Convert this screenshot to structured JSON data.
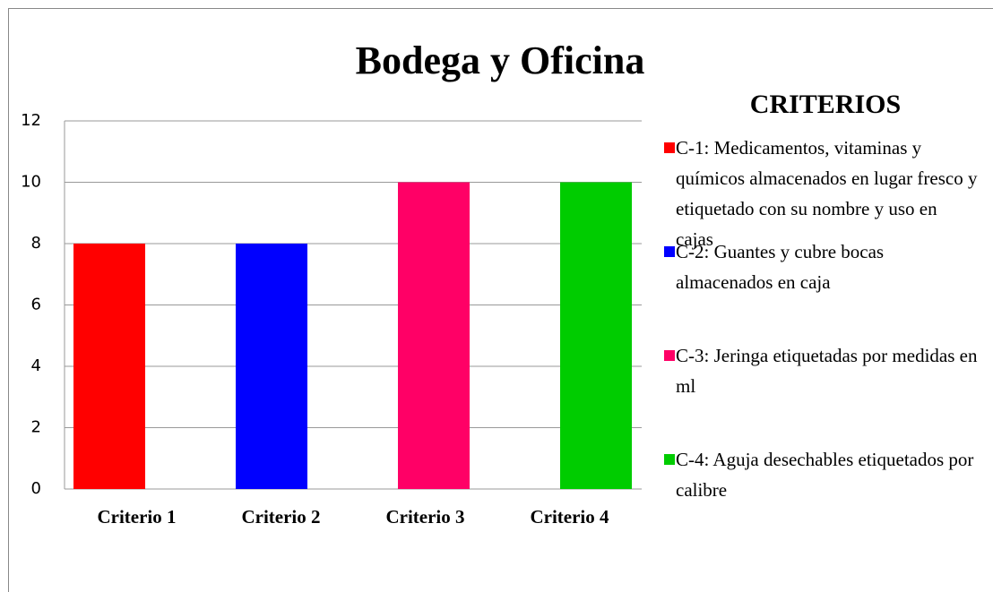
{
  "chart_data": {
    "type": "bar",
    "title": "Bodega y Oficina",
    "categories": [
      "Criterio 1",
      "Criterio 2",
      "Criterio 3",
      "Criterio 4"
    ],
    "series": [
      {
        "name": "C-1: Medicamentos, vitaminas y químicos almacenados en lugar fresco y etiquetado con su nombre y uso en cajas",
        "color": "#ff0000",
        "values": [
          8,
          null,
          null,
          null
        ]
      },
      {
        "name": "C-2: Guantes y cubre bocas almacenados en caja",
        "color": "#0000ff",
        "values": [
          null,
          8,
          null,
          null
        ]
      },
      {
        "name": "C-3: Jeringa etiquetadas por medidas en ml",
        "color": "#ff0066",
        "values": [
          null,
          null,
          10,
          null
        ]
      },
      {
        "name": "C-4: Aguja desechables etiquetados por calibre",
        "color": "#00cc00",
        "values": [
          null,
          null,
          null,
          10
        ]
      }
    ],
    "legend_title": "CRITERIOS",
    "ylim": [
      0,
      12
    ],
    "yticks": [
      0,
      2,
      4,
      6,
      8,
      10,
      12
    ],
    "grid": true,
    "legend": "right"
  }
}
